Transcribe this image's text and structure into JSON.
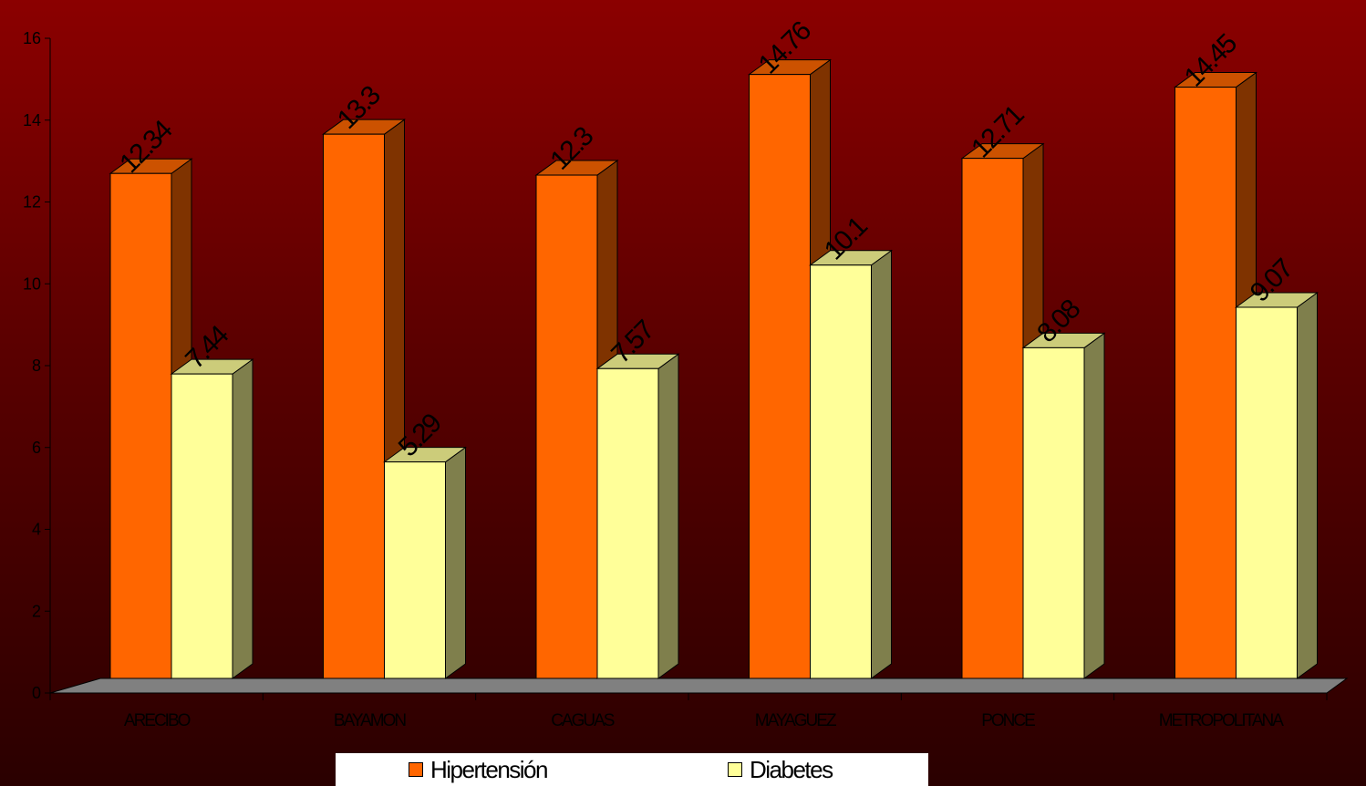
{
  "chart_data": {
    "type": "bar",
    "categories": [
      "ARECIBO",
      "BAYAMON",
      "CAGUAS",
      "MAYAGUEZ",
      "PONCE",
      "METROPOLITANA"
    ],
    "series": [
      {
        "name": "Hipertensión",
        "values": [
          12.34,
          13.3,
          12.3,
          14.76,
          12.71,
          14.45
        ],
        "data_labels": [
          "12.34",
          "13.3",
          "12.3",
          "14.76",
          "12.71",
          "14.45"
        ]
      },
      {
        "name": "Diabetes",
        "values": [
          7.44,
          5.29,
          7.57,
          10.1,
          8.08,
          9.07
        ],
        "data_labels": [
          "7.44",
          "5.29",
          "7.57",
          "10.1",
          "8.08",
          "9.07"
        ]
      }
    ],
    "ylim": [
      0,
      16
    ],
    "yticks": [
      "0",
      "2",
      "4",
      "6",
      "8",
      "10",
      "12",
      "14",
      "16"
    ],
    "style": "3d-clustered-column",
    "legend_position": "bottom",
    "colors": {
      "Hipertensión": {
        "front": "#ff6600",
        "side": "#7f3300",
        "top": "#cc5200"
      },
      "Diabetes": {
        "front": "#ffff99",
        "side": "#7f7f4c",
        "top": "#cccc7a"
      },
      "floor": "#808080"
    }
  }
}
